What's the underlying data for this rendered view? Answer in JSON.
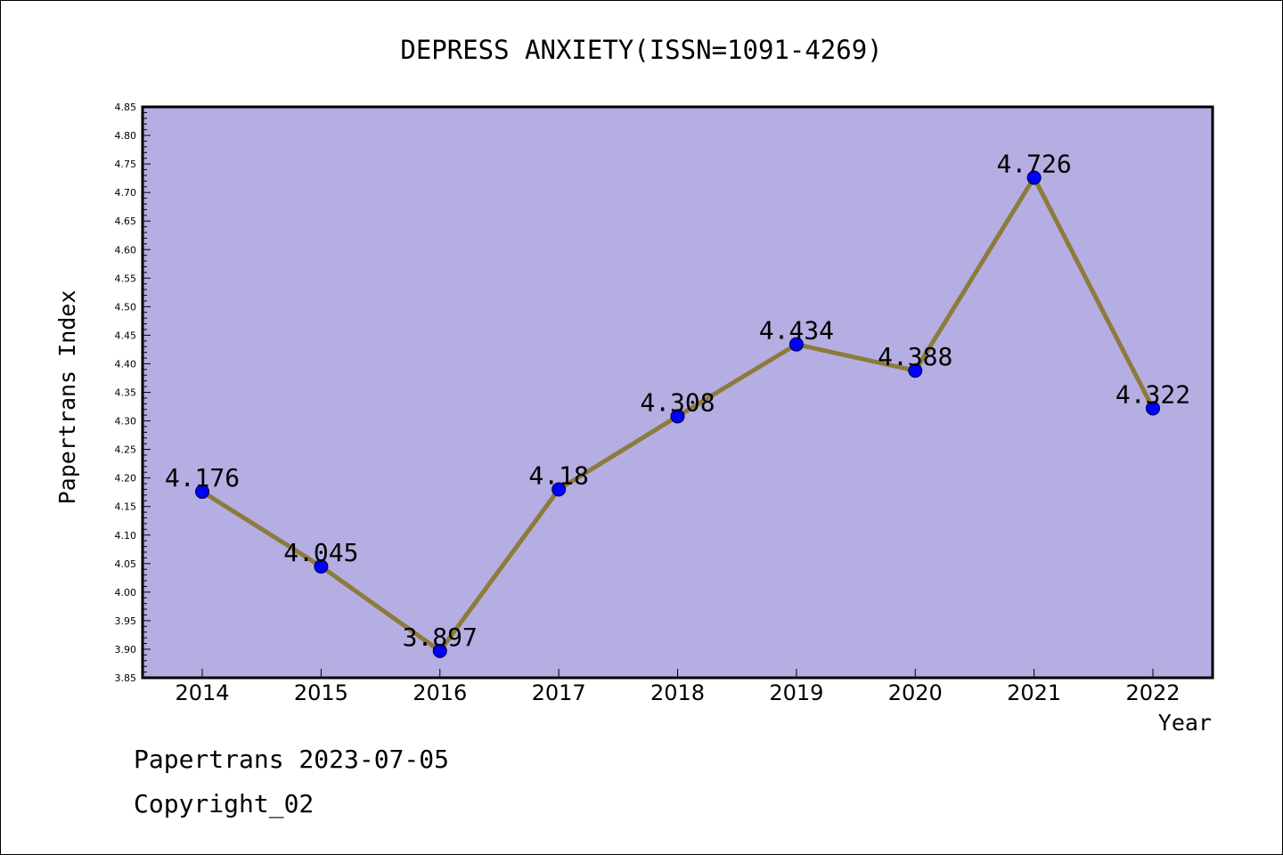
{
  "chart_data": {
    "type": "line",
    "title": "DEPRESS ANXIETY(ISSN=1091-4269)",
    "xlabel": "Year",
    "ylabel": "Papertrans Index",
    "ylim": [
      3.85,
      4.85
    ],
    "yticks": [
      "3.85",
      "3.90",
      "3.95",
      "4.00",
      "4.05",
      "4.10",
      "4.15",
      "4.20",
      "4.25",
      "4.30",
      "4.35",
      "4.40",
      "4.45",
      "4.50",
      "4.55",
      "4.60",
      "4.65",
      "4.70",
      "4.75",
      "4.80",
      "4.85"
    ],
    "categories": [
      "2014",
      "2015",
      "2016",
      "2017",
      "2018",
      "2019",
      "2020",
      "2021",
      "2022"
    ],
    "values": [
      4.176,
      4.045,
      3.897,
      4.18,
      4.308,
      4.434,
      4.388,
      4.726,
      4.322
    ],
    "data_labels": [
      "4.176",
      "4.045",
      "3.897",
      "4.18",
      "4.308",
      "4.434",
      "4.388",
      "4.726",
      "4.322"
    ],
    "grid": false,
    "colors": {
      "plot_background": "#b5aee2",
      "line": "#8c7b3c",
      "marker": "#0000ff"
    }
  },
  "footer": {
    "source": "Papertrans 2023-07-05",
    "copyright": "Copyright_02"
  }
}
